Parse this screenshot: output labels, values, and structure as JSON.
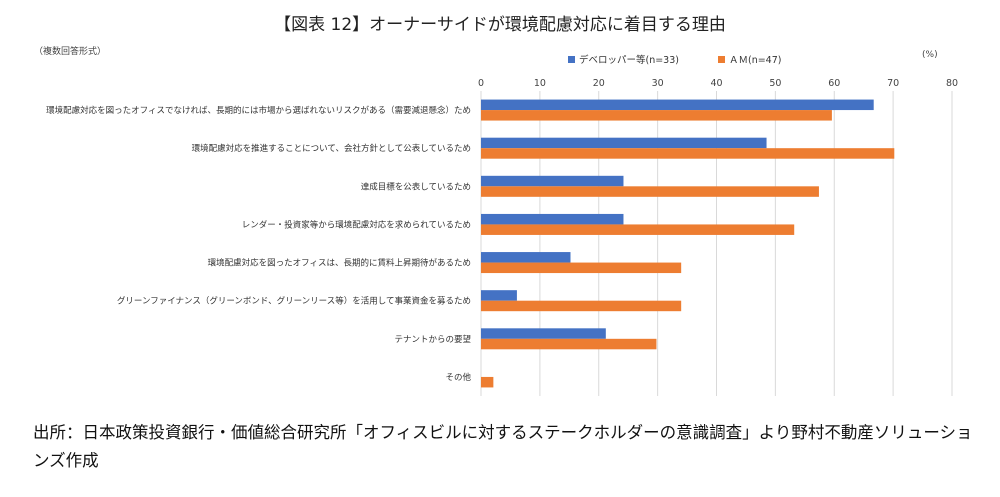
{
  "header": {
    "title": "【図表 12】オーナーサイドが環境配慮対応に着目する理由",
    "note": "（複数回答形式）",
    "unit": "(%)"
  },
  "source": {
    "text": "出所：日本政策投資銀行・価値総合研究所「オフィスビルに対するステークホルダーの意識調査」より野村不動産ソリューションズ作成"
  },
  "chart_data": {
    "type": "bar",
    "orientation": "horizontal",
    "categories": [
      "環境配慮対応を図ったオフィスでなければ、長期的には市場から選ばれないリスクがある（需要減退懸念）ため",
      "環境配慮対応を推進することについて、会社方針として公表しているため",
      "達成目標を公表しているため",
      "レンダー・投資家等から環境配慮対応を求められているため",
      "環境配慮対応を図ったオフィスは、長期的に賃料上昇期待があるため",
      "グリーンファイナンス（グリーンボンド、グリーンリース等）を活用して事業資金を募るため",
      "テナントからの要望",
      "その他"
    ],
    "series": [
      {
        "name": "デベロッパー等(n=33)",
        "color": "#4472C4",
        "values": [
          66.7,
          48.5,
          24.2,
          24.2,
          15.2,
          6.1,
          21.2,
          0
        ]
      },
      {
        "name": "ＡＭ(n=47)",
        "color": "#ED7D31",
        "values": [
          59.6,
          70.2,
          57.4,
          53.2,
          34.0,
          34.0,
          29.8,
          2.1
        ]
      }
    ],
    "xlim": [
      0,
      80
    ],
    "ticks": [
      0,
      10,
      20,
      30,
      40,
      50,
      60,
      70,
      80
    ],
    "grid": true,
    "legend_position": "top"
  }
}
